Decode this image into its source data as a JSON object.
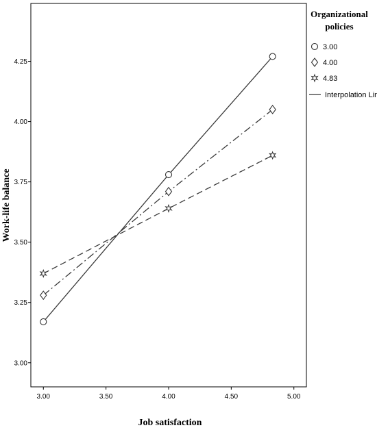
{
  "chart_data": {
    "type": "line",
    "title": "",
    "xlabel": "Job satisfaction",
    "ylabel": "Work-life balance",
    "xlim": [
      2.9,
      5.1
    ],
    "ylim": [
      2.9,
      4.49
    ],
    "xticks": [
      3.0,
      3.5,
      4.0,
      4.5,
      5.0
    ],
    "xtick_labels": [
      "3.00",
      "3.50",
      "4.00",
      "4.50",
      "5.00"
    ],
    "yticks": [
      3.0,
      3.25,
      3.5,
      3.75,
      4.0,
      4.25
    ],
    "ytick_labels": [
      "3.00",
      "3.25",
      "3.50",
      "3.75",
      "4.00",
      "4.25"
    ],
    "grid": false,
    "legend": {
      "title_lines": [
        "Organizational",
        "policies"
      ],
      "placement": "top-right",
      "interpolation_label": "Interpolation Line"
    },
    "series": [
      {
        "name": "3.00",
        "marker": "circle",
        "line": "solid",
        "x": [
          3.0,
          4.0,
          4.83
        ],
        "y": [
          3.17,
          3.78,
          4.27
        ]
      },
      {
        "name": "4.00",
        "marker": "diamond",
        "line": "dashdot",
        "x": [
          3.0,
          4.0,
          4.83
        ],
        "y": [
          3.28,
          3.71,
          4.05
        ]
      },
      {
        "name": "4.83",
        "marker": "star",
        "line": "dashed",
        "x": [
          3.0,
          4.0,
          4.83
        ],
        "y": [
          3.37,
          3.64,
          3.86
        ]
      }
    ]
  }
}
